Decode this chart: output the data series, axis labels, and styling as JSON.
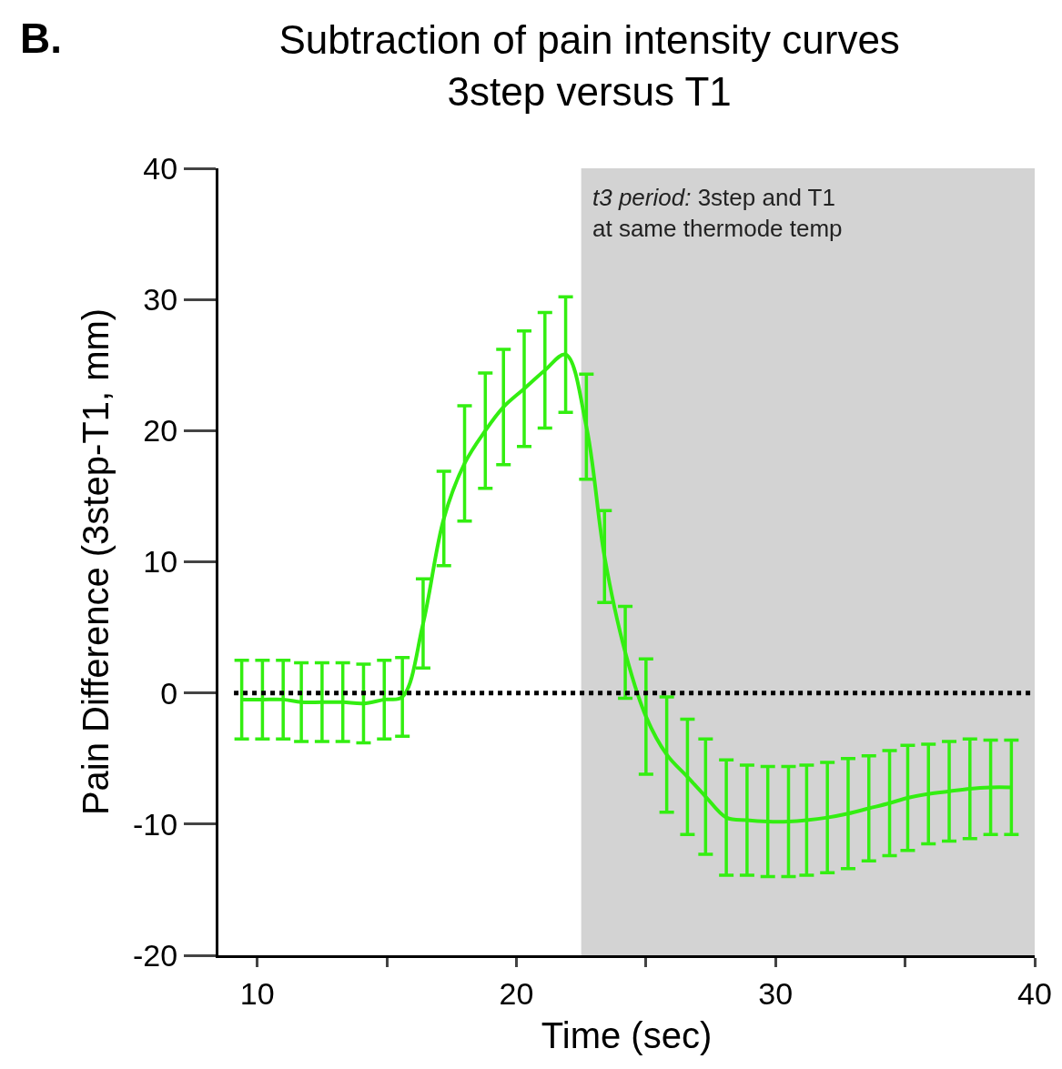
{
  "chart_data": {
    "type": "line",
    "title": "Subtraction of pain intensity curves\n3step versus T1",
    "xlabel": "Time (sec)",
    "ylabel": "Pain Difference (3step-T1, mm)",
    "annotations": [
      "B."
    ],
    "x": [
      9.4,
      10.2,
      11.0,
      11.7,
      12.5,
      13.3,
      14.1,
      14.9,
      15.6,
      16.4,
      17.2,
      18.0,
      18.8,
      19.5,
      20.3,
      21.1,
      21.9,
      22.7,
      23.4,
      24.2,
      25.0,
      25.8,
      26.6,
      27.3,
      28.1,
      28.9,
      29.7,
      30.5,
      31.2,
      32.0,
      32.8,
      33.6,
      34.4,
      35.1,
      35.9,
      36.7,
      37.5,
      38.3,
      39.1
    ],
    "series": [
      {
        "color": "#33ee11",
        "values": [
          -0.5,
          -0.5,
          -0.5,
          -0.7,
          -0.7,
          -0.7,
          -0.8,
          -0.5,
          -0.3,
          5.3,
          13.3,
          17.5,
          20,
          21.8,
          23.2,
          24.6,
          25.8,
          20.3,
          10.4,
          3.1,
          -1.8,
          -4.7,
          -6.4,
          -7.9,
          -9.5,
          -9.7,
          -9.8,
          -9.8,
          -9.7,
          -9.5,
          -9.2,
          -8.8,
          -8.4,
          -8.0,
          -7.7,
          -7.5,
          -7.3,
          -7.2,
          -7.2
        ],
        "errors": [
          3,
          3,
          3,
          3,
          3,
          3,
          3,
          3,
          3,
          3.4,
          3.6,
          4.4,
          4.4,
          4.4,
          4.4,
          4.4,
          4.4,
          4,
          3.5,
          3.5,
          4.4,
          4.4,
          4.4,
          4.4,
          4.4,
          4.2,
          4.2,
          4.2,
          4.2,
          4.2,
          4.2,
          4,
          4,
          4,
          3.8,
          3.8,
          3.8,
          3.6,
          3.6
        ]
      }
    ],
    "xlim": [
      8.5,
      40
    ],
    "xticks": [
      10,
      {
        "value": 15,
        "label": null
      },
      20,
      {
        "value": 25,
        "label": null
      },
      30,
      {
        "value": 35,
        "label": null
      },
      40
    ],
    "ylim": [
      -20,
      40
    ],
    "yticks": [
      -20,
      -10,
      0,
      10,
      20,
      30,
      40
    ],
    "ref_lines": [
      {
        "axis": "y",
        "value": 0,
        "color": "#000000",
        "line_style": "dotted"
      }
    ],
    "bands": [
      {
        "axis": "x",
        "from": 22.5,
        "to": 40,
        "color": "#d3d3d3",
        "label": "t3 period: 3step and T1\nat same thermode temp"
      }
    ],
    "grid": false,
    "marker": "none",
    "line_style": "solid"
  }
}
